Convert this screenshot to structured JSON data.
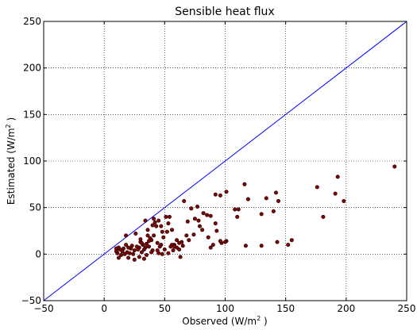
{
  "chart_data": {
    "type": "scatter",
    "title": "Sensible heat flux",
    "xlabel": {
      "pre": "Observed (W/m",
      "sup": "2",
      "post": " )"
    },
    "ylabel": {
      "pre": "Estimated (W/m",
      "sup": "2",
      "post": " )"
    },
    "xlim": [
      -50,
      250
    ],
    "ylim": [
      -50,
      250
    ],
    "xticks": [
      -50,
      0,
      50,
      100,
      150,
      200,
      250
    ],
    "yticks": [
      -50,
      0,
      50,
      100,
      150,
      200,
      250
    ],
    "grid": true,
    "grid_style": "dotted",
    "reference_line": {
      "x": [
        -50,
        250
      ],
      "y": [
        -50,
        250
      ],
      "color": "#0000ff"
    },
    "marker_color": "#8b0000",
    "marker_edge": "#000000",
    "points": [
      [
        240,
        94
      ],
      [
        193,
        83
      ],
      [
        176,
        72
      ],
      [
        191,
        65
      ],
      [
        198,
        57
      ],
      [
        181,
        40
      ],
      [
        155,
        15
      ],
      [
        152,
        10
      ],
      [
        143,
        13
      ],
      [
        142,
        66
      ],
      [
        144,
        57
      ],
      [
        140,
        46
      ],
      [
        134,
        60
      ],
      [
        130,
        43
      ],
      [
        130,
        9
      ],
      [
        119,
        59
      ],
      [
        116,
        75
      ],
      [
        117,
        9
      ],
      [
        111,
        48
      ],
      [
        108,
        48
      ],
      [
        110,
        40
      ],
      [
        101,
        67
      ],
      [
        96,
        63
      ],
      [
        92,
        64
      ],
      [
        101,
        14
      ],
      [
        97,
        12
      ],
      [
        96,
        14
      ],
      [
        100,
        13
      ],
      [
        93,
        25
      ],
      [
        92,
        33
      ],
      [
        88,
        41
      ],
      [
        85,
        42
      ],
      [
        82,
        44
      ],
      [
        81,
        26
      ],
      [
        78,
        36
      ],
      [
        77,
        51
      ],
      [
        75,
        38
      ],
      [
        74,
        21
      ],
      [
        72,
        49
      ],
      [
        69,
        35
      ],
      [
        68,
        20
      ],
      [
        66,
        57
      ],
      [
        64,
        13
      ],
      [
        62,
        12
      ],
      [
        60,
        7
      ],
      [
        62,
        5
      ],
      [
        58,
        10
      ],
      [
        56,
        26
      ],
      [
        56,
        10
      ],
      [
        55,
        8
      ],
      [
        57,
        4
      ],
      [
        54,
        40
      ],
      [
        53,
        1
      ],
      [
        53,
        33
      ],
      [
        51,
        40
      ],
      [
        49,
        18
      ],
      [
        48,
        24
      ],
      [
        48,
        0
      ],
      [
        47,
        10
      ],
      [
        46,
        8
      ],
      [
        45,
        36
      ],
      [
        44,
        12
      ],
      [
        43,
        30
      ],
      [
        42,
        34
      ],
      [
        41,
        20
      ],
      [
        40,
        4
      ],
      [
        40,
        31
      ],
      [
        39,
        15
      ],
      [
        38,
        17
      ],
      [
        37,
        14
      ],
      [
        36,
        20
      ],
      [
        36,
        26
      ],
      [
        35,
        11
      ],
      [
        34,
        36
      ],
      [
        34,
        7
      ],
      [
        33,
        5
      ],
      [
        32,
        10
      ],
      [
        31,
        2
      ],
      [
        30,
        13
      ],
      [
        30,
        16
      ],
      [
        29,
        -3
      ],
      [
        29,
        7
      ],
      [
        28,
        5
      ],
      [
        27,
        8
      ],
      [
        26,
        22
      ],
      [
        25,
        4
      ],
      [
        24,
        0
      ],
      [
        23,
        9
      ],
      [
        22,
        6
      ],
      [
        21,
        1
      ],
      [
        20,
        7
      ],
      [
        20,
        -4
      ],
      [
        19,
        2
      ],
      [
        18,
        20
      ],
      [
        18,
        10
      ],
      [
        17,
        0
      ],
      [
        16,
        6
      ],
      [
        15,
        3
      ],
      [
        14,
        -1
      ],
      [
        13,
        5
      ],
      [
        12,
        -4
      ],
      [
        12,
        7
      ],
      [
        11,
        1
      ],
      [
        10,
        3
      ],
      [
        10,
        6
      ],
      [
        45,
        1
      ],
      [
        35,
        -1
      ],
      [
        50,
        5
      ],
      [
        60,
        15
      ],
      [
        70,
        15
      ],
      [
        86,
        18
      ],
      [
        88,
        7
      ],
      [
        63,
        -3
      ],
      [
        52,
        24
      ],
      [
        44,
        4
      ],
      [
        39,
        2
      ],
      [
        25,
        -6
      ],
      [
        33,
        -5
      ],
      [
        47,
        30
      ],
      [
        41,
        38
      ],
      [
        37,
        8
      ],
      [
        31,
        12
      ],
      [
        58,
        8
      ],
      [
        65,
        9
      ],
      [
        79,
        30
      ],
      [
        90,
        10
      ]
    ]
  }
}
